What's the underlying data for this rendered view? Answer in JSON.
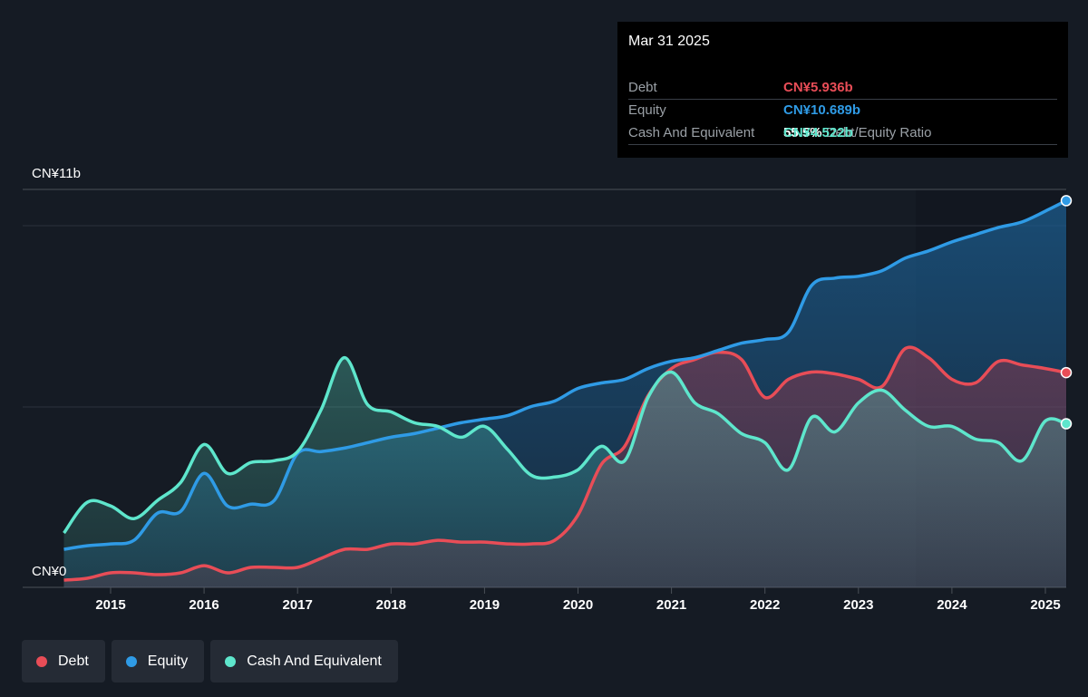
{
  "tooltip": {
    "date": "Mar 31 2025",
    "rows": [
      {
        "label": "Debt",
        "value": "CN¥5.936b",
        "color": "#e84d57"
      },
      {
        "label": "Equity",
        "value": "CN¥10.689b",
        "color": "#2f9be6"
      },
      {
        "ratio_value": "55.5%",
        "ratio_label": "Debt/Equity Ratio"
      },
      {
        "label": "Cash And Equivalent",
        "value": "CN¥4.522b",
        "color": "#5ee6cc"
      }
    ]
  },
  "y_axis": {
    "top_label": "CN¥11b",
    "bottom_label": "CN¥0"
  },
  "legend": [
    {
      "label": "Debt",
      "color": "#e84d57"
    },
    {
      "label": "Equity",
      "color": "#2f9be6"
    },
    {
      "label": "Cash And Equivalent",
      "color": "#5ee6cc"
    }
  ],
  "chart_data": {
    "type": "area",
    "x_ticks": [
      "2015",
      "2016",
      "2017",
      "2018",
      "2019",
      "2020",
      "2021",
      "2022",
      "2023",
      "2024",
      "2025"
    ],
    "ylim": [
      0,
      11
    ],
    "y_unit": "CN¥ billions",
    "grid": true,
    "legend_position": "bottom-left",
    "series": [
      {
        "name": "Debt",
        "color": "#e84d57",
        "x": [
          2014.5,
          2014.75,
          2015.0,
          2015.25,
          2015.5,
          2015.75,
          2016.0,
          2016.25,
          2016.5,
          2016.75,
          2017.0,
          2017.25,
          2017.5,
          2017.75,
          2018.0,
          2018.25,
          2018.5,
          2018.75,
          2019.0,
          2019.25,
          2019.5,
          2019.75,
          2020.0,
          2020.25,
          2020.5,
          2020.75,
          2021.0,
          2021.25,
          2021.5,
          2021.75,
          2022.0,
          2022.25,
          2022.5,
          2022.75,
          2023.0,
          2023.25,
          2023.5,
          2023.75,
          2024.0,
          2024.25,
          2024.5,
          2024.75,
          2025.0,
          2025.25
        ],
        "values": [
          0.2,
          0.25,
          0.4,
          0.4,
          0.35,
          0.4,
          0.6,
          0.4,
          0.55,
          0.55,
          0.55,
          0.8,
          1.05,
          1.05,
          1.2,
          1.2,
          1.3,
          1.25,
          1.25,
          1.2,
          1.2,
          1.3,
          2.0,
          3.4,
          3.9,
          5.3,
          6.05,
          6.3,
          6.5,
          6.3,
          5.25,
          5.75,
          5.95,
          5.9,
          5.75,
          5.55,
          6.6,
          6.35,
          5.75,
          5.65,
          6.25,
          6.15,
          6.05,
          5.936
        ]
      },
      {
        "name": "Equity",
        "color": "#2f9be6",
        "x": [
          2014.5,
          2014.75,
          2015.0,
          2015.25,
          2015.5,
          2015.75,
          2016.0,
          2016.25,
          2016.5,
          2016.75,
          2017.0,
          2017.25,
          2017.5,
          2017.75,
          2018.0,
          2018.25,
          2018.5,
          2018.75,
          2019.0,
          2019.25,
          2019.5,
          2019.75,
          2020.0,
          2020.25,
          2020.5,
          2020.75,
          2021.0,
          2021.25,
          2021.5,
          2021.75,
          2022.0,
          2022.25,
          2022.5,
          2022.75,
          2023.0,
          2023.25,
          2023.5,
          2023.75,
          2024.0,
          2024.25,
          2024.5,
          2024.75,
          2025.0,
          2025.25
        ],
        "values": [
          1.05,
          1.15,
          1.2,
          1.3,
          2.05,
          2.1,
          3.15,
          2.25,
          2.3,
          2.4,
          3.7,
          3.75,
          3.85,
          4.0,
          4.15,
          4.25,
          4.4,
          4.55,
          4.65,
          4.75,
          5.0,
          5.15,
          5.5,
          5.65,
          5.75,
          6.05,
          6.25,
          6.35,
          6.55,
          6.75,
          6.85,
          7.05,
          8.35,
          8.55,
          8.6,
          8.75,
          9.1,
          9.3,
          9.55,
          9.75,
          9.95,
          10.1,
          10.4,
          10.689
        ]
      },
      {
        "name": "Cash And Equivalent",
        "color": "#5ee6cc",
        "x": [
          2014.5,
          2014.75,
          2015.0,
          2015.25,
          2015.5,
          2015.75,
          2016.0,
          2016.25,
          2016.5,
          2016.75,
          2017.0,
          2017.25,
          2017.5,
          2017.75,
          2018.0,
          2018.25,
          2018.5,
          2018.75,
          2019.0,
          2019.25,
          2019.5,
          2019.75,
          2020.0,
          2020.25,
          2020.5,
          2020.75,
          2021.0,
          2021.25,
          2021.5,
          2021.75,
          2022.0,
          2022.25,
          2022.5,
          2022.75,
          2023.0,
          2023.25,
          2023.5,
          2023.75,
          2024.0,
          2024.25,
          2024.5,
          2024.75,
          2025.0,
          2025.25
        ],
        "values": [
          1.5,
          2.35,
          2.25,
          1.9,
          2.4,
          2.9,
          3.95,
          3.15,
          3.45,
          3.5,
          3.75,
          4.9,
          6.35,
          5.05,
          4.85,
          4.55,
          4.45,
          4.15,
          4.45,
          3.8,
          3.1,
          3.05,
          3.25,
          3.9,
          3.5,
          5.25,
          5.95,
          5.1,
          4.8,
          4.25,
          4.0,
          3.25,
          4.7,
          4.3,
          5.1,
          5.45,
          4.9,
          4.45,
          4.45,
          4.1,
          4.0,
          3.5,
          4.6,
          4.522
        ]
      }
    ]
  }
}
